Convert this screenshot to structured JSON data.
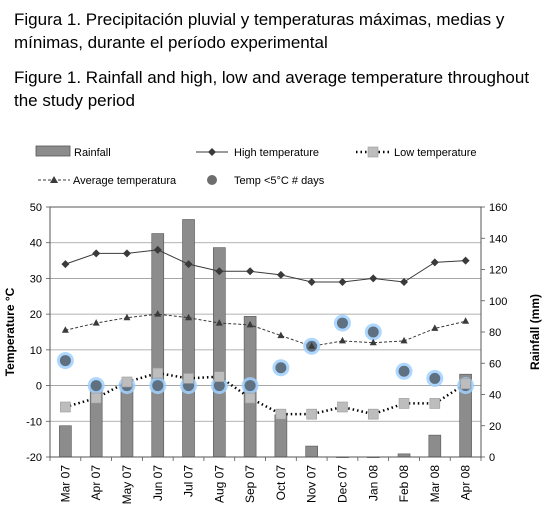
{
  "caption_es": "Figura 1. Precipitación pluvial y temperaturas máximas, medias y mínimas, durante el período experimental",
  "caption_en": "Figure 1. Rainfall and high, low and average temperature throughout the study period",
  "chart_data": {
    "type": "bar",
    "categories": [
      "Mar 07",
      "Apr 07",
      "May 07",
      "Jun 07",
      "Jul 07",
      "Aug 07",
      "Sep 07",
      "Oct 07",
      "Nov 07",
      "Dec 07",
      "Jan 08",
      "Feb 08",
      "Mar 08",
      "Apr 08"
    ],
    "ylabel": "Temperature °C",
    "y2label": "Rainfall (mm)",
    "ylim": [
      -20,
      50
    ],
    "y2lim": [
      0,
      160
    ],
    "yticks": [
      50,
      40,
      30,
      20,
      10,
      0,
      -10,
      -20
    ],
    "y2ticks": [
      160,
      140,
      120,
      100,
      80,
      60,
      40,
      20,
      0
    ],
    "grid": true,
    "legend_position": "top",
    "series": [
      {
        "name": "Rainfall",
        "kind": "bar",
        "axis": "right",
        "color": "#8c8c8c",
        "values": [
          20,
          46,
          47,
          143,
          152,
          134,
          90,
          27,
          7,
          0,
          0,
          2,
          14,
          53
        ]
      },
      {
        "name": "High temperature",
        "kind": "line",
        "axis": "left",
        "color": "#3a3a3a",
        "marker": "diamond",
        "dash": "solid",
        "values": [
          34,
          37,
          37,
          38,
          34,
          32,
          32,
          31,
          29,
          29,
          30,
          29,
          34.5,
          35
        ]
      },
      {
        "name": "Low temperature",
        "kind": "line",
        "axis": "left",
        "color": "#000000",
        "marker": "square",
        "dash": "dotted",
        "values": [
          -6,
          -3.5,
          1,
          3.5,
          2,
          2.5,
          -3.5,
          -8,
          -8,
          -6,
          -8,
          -5,
          -5,
          0.5
        ]
      },
      {
        "name": "Average temperatura",
        "kind": "line",
        "axis": "left",
        "color": "#3a3a3a",
        "marker": "triangle",
        "dash": "dashed",
        "values": [
          15.5,
          17.5,
          19,
          20,
          19,
          17.5,
          17,
          14,
          11,
          12.5,
          12,
          12.5,
          16,
          18
        ]
      },
      {
        "name": "Temp <5°C # days",
        "kind": "scatter",
        "axis": "left",
        "color": "#5f7080",
        "values": [
          7,
          0,
          0,
          0,
          0,
          0,
          0,
          5,
          11,
          17.5,
          15,
          4,
          2,
          0
        ]
      }
    ]
  }
}
